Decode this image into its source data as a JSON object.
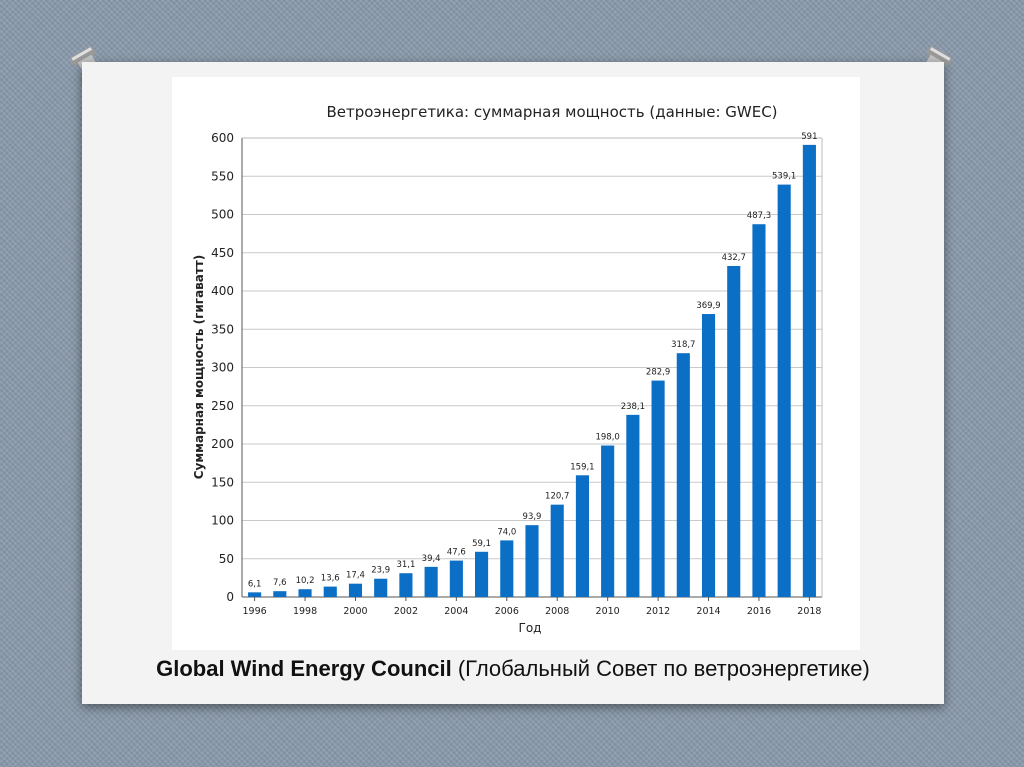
{
  "caption": {
    "bold": "Global Wind Energy Council",
    "normal": "(Глобальный Совет по ветроэнергетике)"
  },
  "colors": {
    "bar": "#0b6fc6",
    "grid": "#c9c9c9",
    "background": "#8a9aab"
  },
  "chart_data": {
    "type": "bar",
    "title": "Ветроэнергетика: суммарная мощность (данные: GWEC)",
    "xlabel": "Год",
    "ylabel": "Суммарная мощность (гигаватт)",
    "ylim": [
      0,
      600
    ],
    "yticks": [
      "0",
      "50",
      "100",
      "150",
      "200",
      "250",
      "300",
      "350",
      "400",
      "450",
      "500",
      "550",
      "600"
    ],
    "grid": true,
    "categories": [
      "1996",
      "1997",
      "1998",
      "1999",
      "2000",
      "2001",
      "2002",
      "2003",
      "2004",
      "2005",
      "2006",
      "2007",
      "2008",
      "2009",
      "2010",
      "2011",
      "2012",
      "2013",
      "2014",
      "2015",
      "2016",
      "2017",
      "2018"
    ],
    "xtick_labels": [
      "1996",
      "1998",
      "2000",
      "2002",
      "2004",
      "2006",
      "2008",
      "2010",
      "2012",
      "2014",
      "2016",
      "2018"
    ],
    "values": [
      6.1,
      7.6,
      10.2,
      13.6,
      17.4,
      23.9,
      31.1,
      39.4,
      47.6,
      59.1,
      74.0,
      93.9,
      120.7,
      159.1,
      198.0,
      238.1,
      282.9,
      318.7,
      369.9,
      432.7,
      487.3,
      539.1,
      591
    ],
    "value_labels": [
      "6,1",
      "7,6",
      "10,2",
      "13,6",
      "17,4",
      "23,9",
      "31,1",
      "39,4",
      "47,6",
      "59,1",
      "74,0",
      "93,9",
      "120,7",
      "159,1",
      "198,0",
      "238,1",
      "282,9",
      "318,7",
      "369,9",
      "432,7",
      "487,3",
      "539,1",
      "591"
    ]
  }
}
